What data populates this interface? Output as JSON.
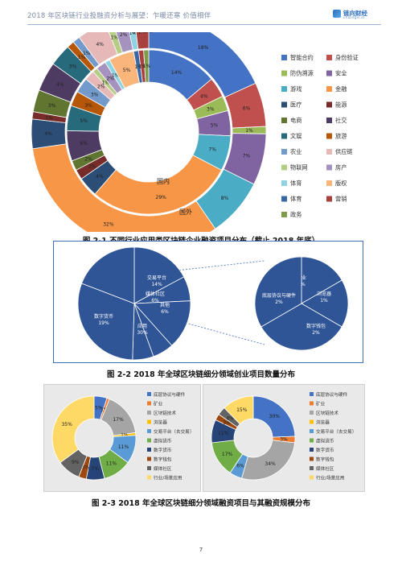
{
  "header": {
    "title": "2018 年区块链行业投融资分析与展望：乍暖还寒 价值相伴",
    "logo_name": "链向财经",
    "logo_sub": "chainge.io"
  },
  "figure1": {
    "caption": "图 2-1  不同行业应用类区块链企业融资项目分布（截止 2018 年底）",
    "inner_ring_label": "国内",
    "outer_ring_label": "国外",
    "chart_data": {
      "type": "donut",
      "rings": [
        "国内",
        "国外"
      ],
      "legend": [
        {
          "name": "智能合约",
          "color": "#4472c4"
        },
        {
          "name": "身份验证",
          "color": "#c0504d"
        },
        {
          "name": "防伪溯源",
          "color": "#9bbb59"
        },
        {
          "name": "安全",
          "color": "#8064a2"
        },
        {
          "name": "游戏",
          "color": "#4bacc6"
        },
        {
          "name": "金融",
          "color": "#f79646"
        },
        {
          "name": "医疗",
          "color": "#2c4d75"
        },
        {
          "name": "能源",
          "color": "#772c2a"
        },
        {
          "name": "电商",
          "color": "#5f7530"
        },
        {
          "name": "社交",
          "color": "#4d3b62"
        },
        {
          "name": "文娱",
          "color": "#276a7c"
        },
        {
          "name": "旅游",
          "color": "#b65708"
        },
        {
          "name": "农业",
          "color": "#729aca"
        },
        {
          "name": "供应链",
          "color": "#e6b9b8"
        },
        {
          "name": "物联网",
          "color": "#b5cd84"
        },
        {
          "name": "房产",
          "color": "#a692be"
        },
        {
          "name": "体育",
          "color": "#8fd2e2"
        },
        {
          "name": "版权",
          "color": "#f9b57a"
        },
        {
          "name": "体育",
          "color": "#3a67a6"
        },
        {
          "name": "营销",
          "color": "#a8413e"
        },
        {
          "name": "政务",
          "color": "#7f9a48"
        }
      ],
      "inner": [
        {
          "category": "智能合约",
          "value": 14
        },
        {
          "category": "身份验证",
          "value": 4
        },
        {
          "category": "防伪溯源",
          "value": 3
        },
        {
          "category": "安全",
          "value": 5
        },
        {
          "category": "游戏",
          "value": 7
        },
        {
          "category": "金融",
          "value": 29
        },
        {
          "category": "医疗",
          "value": 4
        },
        {
          "category": "能源",
          "value": 2
        },
        {
          "category": "电商",
          "value": 2
        },
        {
          "category": "社交",
          "value": 6
        },
        {
          "category": "文娱",
          "value": 5
        },
        {
          "category": "旅游",
          "value": 3
        },
        {
          "category": "农业",
          "value": 3
        },
        {
          "category": "供应链",
          "value": 2
        },
        {
          "category": "物联网",
          "value": 1
        },
        {
          "category": "房产",
          "value": 2
        },
        {
          "category": "体育",
          "value": 1
        },
        {
          "category": "版权",
          "value": 5
        },
        {
          "category": "体育",
          "value": 1
        },
        {
          "category": "营销",
          "value": 1
        },
        {
          "category": "政务",
          "value": 1
        }
      ],
      "outer": [
        {
          "category": "智能合约",
          "value": 18
        },
        {
          "category": "身份验证",
          "value": 6
        },
        {
          "category": "防伪溯源",
          "value": 1
        },
        {
          "category": "安全",
          "value": 7
        },
        {
          "category": "游戏",
          "value": 8
        },
        {
          "category": "金融",
          "value": 32
        },
        {
          "category": "医疗",
          "value": 4
        },
        {
          "category": "能源",
          "value": 1
        },
        {
          "category": "电商",
          "value": 3
        },
        {
          "category": "社交",
          "value": 4
        },
        {
          "category": "文娱",
          "value": 3
        },
        {
          "category": "旅游",
          "value": 1
        },
        {
          "category": "农业",
          "value": 1
        },
        {
          "category": "供应链",
          "value": 4
        },
        {
          "category": "物联网",
          "value": 1
        },
        {
          "category": "房产",
          "value": 2
        },
        {
          "category": "体育",
          "value": 1
        },
        {
          "category": "版权",
          "value": 0
        },
        {
          "category": "体育",
          "value": 0
        },
        {
          "category": "营销",
          "value": 2
        },
        {
          "category": "政务",
          "value": 0
        }
      ]
    }
  },
  "figure2": {
    "caption": "图 2-2 2018 年全球区块链细分领域创业项目数量分布",
    "chart_data": [
      {
        "type": "pie",
        "slices": [
          {
            "label": "通用技术",
            "value": 17
          },
          {
            "label": "虚拟货币",
            "value": 7
          },
          {
            "label": "交易平台",
            "value": 14
          },
          {
            "label": "媒体社区",
            "value": 6
          },
          {
            "label": "其他",
            "value": 6
          },
          {
            "label": "应用",
            "value": 30
          },
          {
            "label": "数字货币",
            "value": 19
          }
        ]
      },
      {
        "type": "pie",
        "slices": [
          {
            "label": "矿业",
            "value": 1
          },
          {
            "label": "浏览器",
            "value": 1
          },
          {
            "label": "数字钱包",
            "value": 2
          },
          {
            "label": "底层协议与硬件",
            "value": 2
          }
        ]
      }
    ]
  },
  "figure3": {
    "caption": "图 2-3 2018 年全球区块链细分领域融资项目与其融资规模分布",
    "legend": [
      {
        "name": "底层协议与硬件",
        "color": "#4472c4"
      },
      {
        "name": "矿业",
        "color": "#ed7d31"
      },
      {
        "name": "区块链技术",
        "color": "#a5a5a5"
      },
      {
        "name": "浏览器",
        "color": "#ffc000"
      },
      {
        "name": "交易平台（去交易）",
        "color": "#5b9bd5"
      },
      {
        "name": "虚拟货币",
        "color": "#70ad47"
      },
      {
        "name": "数字货币",
        "color": "#264478"
      },
      {
        "name": "数字钱包",
        "color": "#9e480e"
      },
      {
        "name": "媒体社区",
        "color": "#636363"
      },
      {
        "name": "行业/场景应用",
        "color": "#ffd966"
      }
    ],
    "chart_data": [
      {
        "type": "donut",
        "slices": [
          {
            "category": "底层协议与硬件",
            "value": 5
          },
          {
            "category": "矿业",
            "value": 1
          },
          {
            "category": "区块链技术",
            "value": 17
          },
          {
            "category": "浏览器",
            "value": 1
          },
          {
            "category": "交易平台（去交易）",
            "value": 11
          },
          {
            "category": "虚拟货币",
            "value": 11
          },
          {
            "category": "数字货币",
            "value": 7
          },
          {
            "category": "数字钱包",
            "value": 3
          },
          {
            "category": "媒体社区",
            "value": 9
          },
          {
            "category": "行业/场景应用",
            "value": 35
          }
        ]
      },
      {
        "type": "donut",
        "slices": [
          {
            "category": "底层协议与硬件",
            "value": 30
          },
          {
            "category": "矿业",
            "value": 3
          },
          {
            "category": "区块链技术",
            "value": 34
          },
          {
            "category": "浏览器",
            "value": 0
          },
          {
            "category": "交易平台（去交易）",
            "value": 6
          },
          {
            "category": "虚拟货币",
            "value": 17
          },
          {
            "category": "数字货币",
            "value": 11
          },
          {
            "category": "数字钱包",
            "value": 3
          },
          {
            "category": "媒体社区",
            "value": 4
          },
          {
            "category": "行业/场景应用",
            "value": 15
          }
        ]
      }
    ]
  },
  "page_number": "7"
}
